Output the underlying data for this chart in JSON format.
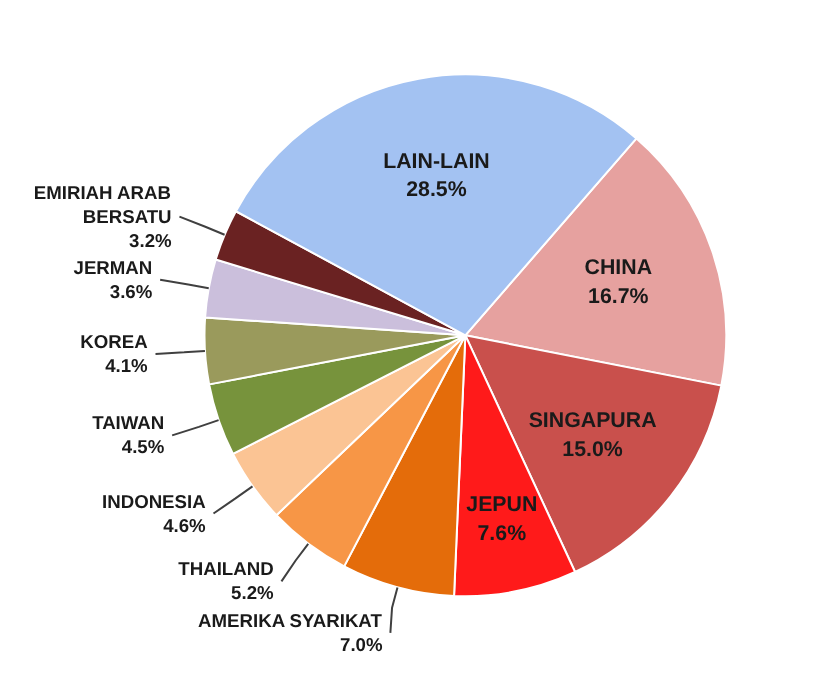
{
  "chart_data": {
    "type": "pie",
    "categories": [
      "CHINA",
      "SINGAPURA",
      "JEPUN",
      "AMERIKA SYARIKAT",
      "THAILAND",
      "INDONESIA",
      "TAIWAN",
      "KOREA",
      "JERMAN",
      "EMIRIAH ARAB BERSATU",
      "LAIN-LAIN"
    ],
    "values": [
      16.7,
      15.0,
      7.6,
      7.0,
      5.2,
      4.6,
      4.5,
      4.1,
      3.6,
      3.2,
      28.5
    ],
    "value_labels": [
      "16.7%",
      "15.0%",
      "7.6%",
      "7.0%",
      "5.2%",
      "4.6%",
      "4.5%",
      "4.1%",
      "3.6%",
      "3.2%",
      "28.5%"
    ],
    "colors": [
      "#e6a19f",
      "#c9504c",
      "#ff1a1a",
      "#e46c0a",
      "#f79646",
      "#fbc494",
      "#77933c",
      "#9a9a5c",
      "#cbbfdc",
      "#6a2222",
      "#a3c2f2"
    ]
  }
}
